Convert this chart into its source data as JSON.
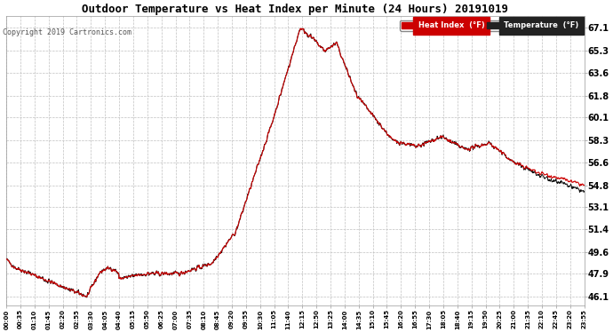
{
  "title": "Outdoor Temperature vs Heat Index per Minute (24 Hours) 20191019",
  "copyright": "Copyright 2019 Cartronics.com",
  "background_color": "#ffffff",
  "plot_bg_color": "#ffffff",
  "grid_color": "#c0c0c0",
  "line_color_heat": "#cc0000",
  "line_color_temp": "#111111",
  "yticks": [
    46.1,
    47.9,
    49.6,
    51.4,
    53.1,
    54.8,
    56.6,
    58.3,
    60.1,
    61.8,
    63.6,
    65.3,
    67.1
  ],
  "ymin": 45.4,
  "ymax": 68.0,
  "legend_heat_label": "Heat Index  (°F)",
  "legend_temp_label": "Temperature  (°F)",
  "xtick_interval_minutes": 35,
  "total_minutes": 1435,
  "title_fontsize": 9,
  "copyright_fontsize": 6,
  "ytick_fontsize": 7,
  "xtick_fontsize": 5
}
